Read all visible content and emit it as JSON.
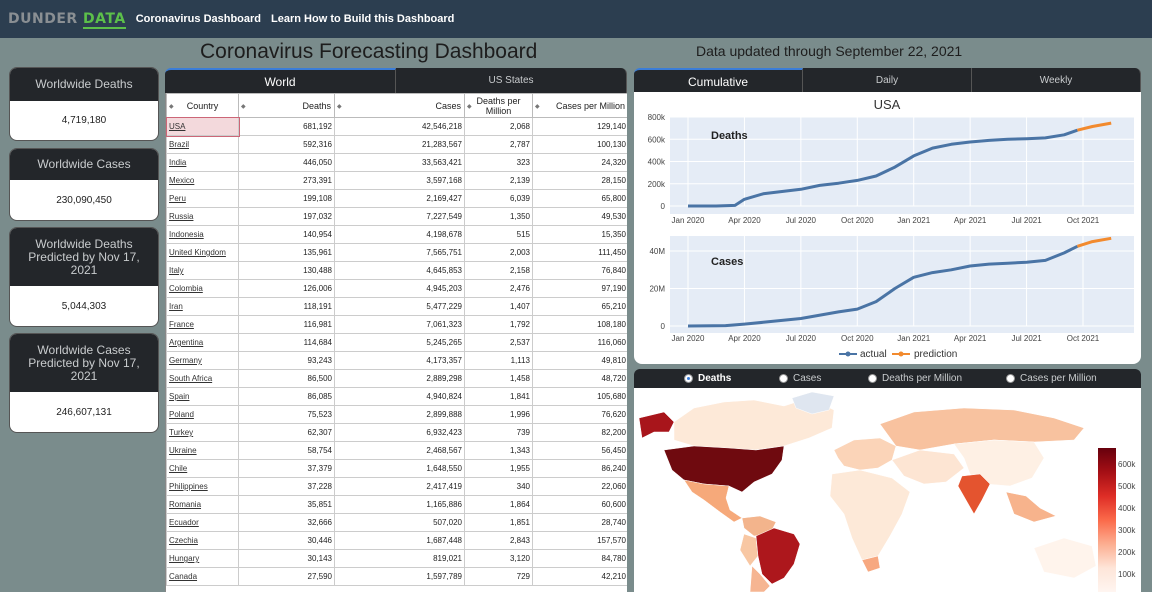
{
  "nav": {
    "logo_part1": "DUNDER",
    "logo_part2": "DATA",
    "links": [
      "Coronavirus Dashboard",
      "Learn How to Build this Dashboard"
    ]
  },
  "title": "Coronavirus Forecasting Dashboard",
  "updated": "Data updated through September 22, 2021",
  "cards": [
    {
      "title": "Worldwide Deaths",
      "value": "4,719,180"
    },
    {
      "title": "Worldwide Cases",
      "value": "230,090,450"
    },
    {
      "title": "Worldwide Deaths Predicted by Nov 17, 2021",
      "value": "5,044,303"
    },
    {
      "title": "Worldwide Cases Predicted by Nov 17, 2021",
      "value": "246,607,131"
    }
  ],
  "table_tabs": [
    "World",
    "US States"
  ],
  "chart_tabs": [
    "Cumulative",
    "Daily",
    "Weekly"
  ],
  "table": {
    "headers": [
      "Country",
      "Deaths",
      "Cases",
      "Deaths per Million",
      "Cases per Million"
    ],
    "rows": [
      [
        "USA",
        "681,192",
        "42,546,218",
        "2,068",
        "129,140"
      ],
      [
        "Brazil",
        "592,316",
        "21,283,567",
        "2,787",
        "100,130"
      ],
      [
        "India",
        "446,050",
        "33,563,421",
        "323",
        "24,320"
      ],
      [
        "Mexico",
        "273,391",
        "3,597,168",
        "2,139",
        "28,150"
      ],
      [
        "Peru",
        "199,108",
        "2,169,427",
        "6,039",
        "65,800"
      ],
      [
        "Russia",
        "197,032",
        "7,227,549",
        "1,350",
        "49,530"
      ],
      [
        "Indonesia",
        "140,954",
        "4,198,678",
        "515",
        "15,350"
      ],
      [
        "United Kingdom",
        "135,961",
        "7,565,751",
        "2,003",
        "111,450"
      ],
      [
        "Italy",
        "130,488",
        "4,645,853",
        "2,158",
        "76,840"
      ],
      [
        "Colombia",
        "126,006",
        "4,945,203",
        "2,476",
        "97,190"
      ],
      [
        "Iran",
        "118,191",
        "5,477,229",
        "1,407",
        "65,210"
      ],
      [
        "France",
        "116,981",
        "7,061,323",
        "1,792",
        "108,180"
      ],
      [
        "Argentina",
        "114,684",
        "5,245,265",
        "2,537",
        "116,060"
      ],
      [
        "Germany",
        "93,243",
        "4,173,357",
        "1,113",
        "49,810"
      ],
      [
        "South Africa",
        "86,500",
        "2,889,298",
        "1,458",
        "48,720"
      ],
      [
        "Spain",
        "86,085",
        "4,940,824",
        "1,841",
        "105,680"
      ],
      [
        "Poland",
        "75,523",
        "2,899,888",
        "1,996",
        "76,620"
      ],
      [
        "Turkey",
        "62,307",
        "6,932,423",
        "739",
        "82,200"
      ],
      [
        "Ukraine",
        "58,754",
        "2,468,567",
        "1,343",
        "56,450"
      ],
      [
        "Chile",
        "37,379",
        "1,648,550",
        "1,955",
        "86,240"
      ],
      [
        "Philippines",
        "37,228",
        "2,417,419",
        "340",
        "22,060"
      ],
      [
        "Romania",
        "35,851",
        "1,165,886",
        "1,864",
        "60,600"
      ],
      [
        "Ecuador",
        "32,666",
        "507,020",
        "1,851",
        "28,740"
      ],
      [
        "Czechia",
        "30,446",
        "1,687,448",
        "2,843",
        "157,570"
      ],
      [
        "Hungary",
        "30,143",
        "819,021",
        "3,120",
        "84,780"
      ],
      [
        "Canada",
        "27,590",
        "1,597,789",
        "729",
        "42,210"
      ]
    ]
  },
  "chart_data": [
    {
      "type": "line",
      "title": "USA",
      "annotation": "Deaths",
      "x_ticks": [
        "Jan 2020",
        "Apr 2020",
        "Jul 2020",
        "Oct 2020",
        "Jan 2021",
        "Apr 2021",
        "Jul 2021",
        "Oct 2021"
      ],
      "y_ticks": [
        "0",
        "200k",
        "400k",
        "600k",
        "800k"
      ],
      "ylim": [
        0,
        800000
      ],
      "series": [
        {
          "name": "actual",
          "color": "#4a74a5",
          "x": [
            0,
            1.5,
            2.5,
            3,
            4,
            5,
            6,
            7,
            8,
            9,
            10,
            11,
            12,
            13,
            14,
            15,
            16,
            17,
            18,
            19,
            20,
            20.7
          ],
          "values": [
            0,
            0,
            5000,
            60000,
            110000,
            130000,
            150000,
            185000,
            205000,
            230000,
            270000,
            350000,
            450000,
            520000,
            555000,
            575000,
            590000,
            600000,
            605000,
            612000,
            640000,
            681000
          ]
        },
        {
          "name": "prediction",
          "color": "#f28a2e",
          "x": [
            20.7,
            21.5,
            22.5
          ],
          "values": [
            681000,
            715000,
            745000
          ]
        }
      ]
    },
    {
      "type": "line",
      "annotation": "Cases",
      "x_ticks": [
        "Jan 2020",
        "Apr 2020",
        "Jul 2020",
        "Oct 2020",
        "Jan 2021",
        "Apr 2021",
        "Jul 2021",
        "Oct 2021"
      ],
      "y_ticks": [
        "0",
        "20M",
        "40M"
      ],
      "ylim": [
        0,
        48000000
      ],
      "series": [
        {
          "name": "actual",
          "color": "#4a74a5",
          "x": [
            0,
            2,
            3,
            4,
            6,
            8,
            9,
            10,
            11,
            12,
            13,
            14,
            15,
            16,
            17,
            18,
            19,
            20,
            20.7
          ],
          "values": [
            0,
            200000,
            1000000,
            2000000,
            4000000,
            7500000,
            9000000,
            13000000,
            20000000,
            26000000,
            28500000,
            30000000,
            32000000,
            33000000,
            33500000,
            34000000,
            35000000,
            39000000,
            42500000
          ]
        },
        {
          "name": "prediction",
          "color": "#f28a2e",
          "x": [
            20.7,
            21.5,
            22.5
          ],
          "values": [
            42500000,
            45000000,
            46800000
          ]
        }
      ]
    }
  ],
  "legend": [
    "actual",
    "prediction"
  ],
  "map_options": [
    "Deaths",
    "Cases",
    "Deaths per Million",
    "Cases per Million"
  ],
  "colorbar_ticks": [
    "600k",
    "500k",
    "400k",
    "300k",
    "200k",
    "100k"
  ]
}
